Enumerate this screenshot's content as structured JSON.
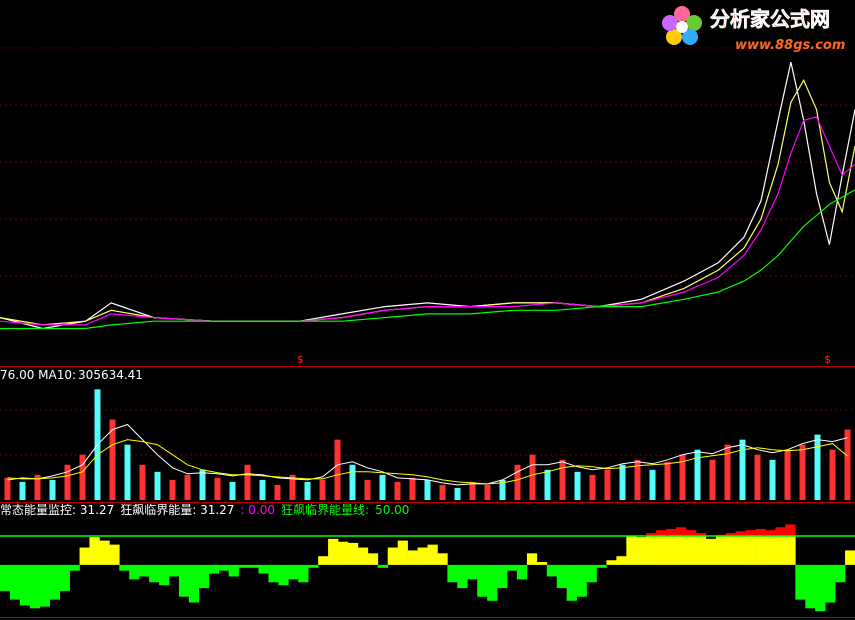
{
  "watermark": {
    "title": "分析家公式网",
    "url": "www.88gs.com"
  },
  "chart_data": [
    {
      "type": "line",
      "x": [
        0,
        5,
        10,
        13,
        18,
        25,
        30,
        35,
        40,
        45,
        50,
        55,
        60,
        65,
        70,
        75,
        80,
        84,
        87,
        89,
        91,
        92.5,
        94,
        95.5,
        97,
        98.5,
        100
      ],
      "xlim": [
        0,
        100
      ],
      "ylim": [
        0,
        100
      ],
      "series": [
        {
          "color": "#ffffff",
          "values": [
            13,
            10,
            12,
            17,
            13,
            12,
            12,
            12,
            14,
            16,
            17,
            16,
            17,
            17,
            16,
            18,
            23,
            28,
            35,
            45,
            67,
            83,
            67,
            47,
            33,
            52,
            70
          ]
        },
        {
          "color": "#ffff66",
          "values": [
            13,
            11,
            12,
            15,
            13,
            12,
            12,
            12,
            13,
            15,
            16,
            16,
            17,
            17,
            16,
            17,
            21,
            26,
            32,
            40,
            55,
            72,
            78,
            70,
            50,
            42,
            60
          ]
        },
        {
          "color": "#ff00ff",
          "values": [
            12,
            11,
            11,
            14,
            13,
            12,
            12,
            12,
            13,
            15,
            16,
            16,
            16,
            17,
            16,
            17,
            20,
            24,
            30,
            37,
            47,
            58,
            67,
            68,
            60,
            52,
            55
          ]
        },
        {
          "color": "#00ff00",
          "values": [
            10,
            10,
            10,
            11,
            12,
            12,
            12,
            12,
            12,
            13,
            14,
            14,
            15,
            15,
            16,
            16,
            18,
            20,
            23,
            26,
            30,
            34,
            38,
            41,
            44,
            46,
            48
          ]
        }
      ],
      "markers": [
        {
          "x": 35.1,
          "label": "$"
        },
        {
          "x": 96.8,
          "label": "$"
        }
      ],
      "marker_color": "#ff2020"
    },
    {
      "type": "bar",
      "header": "76.00 MA10:",
      "ylim": [
        0,
        800000
      ],
      "values": [
        154000,
        126000,
        175000,
        140000,
        245000,
        315000,
        770000,
        560000,
        385000,
        245000,
        196000,
        140000,
        175000,
        210000,
        154000,
        126000,
        245000,
        140000,
        105000,
        175000,
        126000,
        140000,
        420000,
        245000,
        140000,
        175000,
        126000,
        154000,
        140000,
        105000,
        84000,
        126000,
        105000,
        140000,
        245000,
        315000,
        210000,
        280000,
        196000,
        175000,
        210000,
        245000,
        280000,
        210000,
        266000,
        315000,
        350000,
        280000,
        385000,
        420000,
        315000,
        280000,
        350000,
        385000,
        455000,
        350000,
        490000
      ],
      "bar_colors": [
        "#ff3232",
        "#54fcfc",
        "#ff3232",
        "#54fcfc",
        "#ff3232",
        "#ff3232",
        "#54fcfc",
        "#ff3232",
        "#54fcfc",
        "#ff3232",
        "#54fcfc",
        "#ff3232",
        "#ff3232",
        "#54fcfc",
        "#ff3232",
        "#54fcfc",
        "#ff3232",
        "#54fcfc",
        "#ff3232",
        "#ff3232",
        "#54fcfc",
        "#ff3232",
        "#ff3232",
        "#54fcfc",
        "#ff3232",
        "#54fcfc",
        "#ff3232",
        "#ff3232",
        "#54fcfc",
        "#ff3232",
        "#54fcfc",
        "#ff3232",
        "#ff3232",
        "#54fcfc",
        "#ff3232",
        "#ff3232",
        "#54fcfc",
        "#ff3232",
        "#54fcfc",
        "#ff3232",
        "#ff3232",
        "#54fcfc",
        "#ff3232",
        "#54fcfc",
        "#ff3232",
        "#ff3232",
        "#54fcfc",
        "#ff3232",
        "#ff3232",
        "#54fcfc",
        "#ff3232",
        "#54fcfc",
        "#ff3232",
        "#ff3232",
        "#54fcfc",
        "#ff3232",
        "#ff3232"
      ],
      "series": [
        {
          "color": "#ffffff",
          "values": [
            140000,
            154000,
            147000,
            168000,
            196000,
            245000,
            385000,
            490000,
            525000,
            420000,
            315000,
            224000,
            182000,
            189000,
            182000,
            168000,
            182000,
            175000,
            154000,
            147000,
            140000,
            161000,
            245000,
            266000,
            224000,
            196000,
            154000,
            147000,
            140000,
            119000,
            105000,
            112000,
            112000,
            140000,
            196000,
            245000,
            245000,
            266000,
            231000,
            210000,
            224000,
            252000,
            266000,
            252000,
            280000,
            315000,
            336000,
            322000,
            364000,
            385000,
            350000,
            329000,
            350000,
            392000,
            420000,
            406000,
            434000
          ]
        },
        {
          "color": "#ffff00",
          "values": [
            154000,
            147000,
            147000,
            154000,
            168000,
            196000,
            315000,
            385000,
            420000,
            406000,
            385000,
            315000,
            245000,
            210000,
            189000,
            175000,
            175000,
            168000,
            161000,
            154000,
            147000,
            147000,
            175000,
            196000,
            196000,
            189000,
            182000,
            175000,
            161000,
            140000,
            126000,
            119000,
            112000,
            119000,
            140000,
            175000,
            196000,
            224000,
            238000,
            231000,
            217000,
            224000,
            238000,
            245000,
            252000,
            266000,
            294000,
            308000,
            322000,
            350000,
            364000,
            350000,
            343000,
            350000,
            371000,
            392000,
            305634.41
          ]
        }
      ]
    },
    {
      "type": "bar",
      "legend_items": [
        {
          "text": "常态能量监控: 31.27",
          "color": "#ffffff"
        },
        {
          "text": "狂飙临界能量: 31.27",
          "color": "#ffffff"
        },
        {
          "text": ": 0.00",
          "color": "#ff00ff"
        },
        {
          "text": "狂飙临界能量线:",
          "color": "#00ff00"
        }
      ],
      "threshold": {
        "value": 50,
        "label": "50.00"
      },
      "ylim": [
        -90,
        100
      ],
      "colors": {
        "positive": "#ffff00",
        "negative": "#00ff00",
        "above_threshold": "#ff0000",
        "threshold_line": "#00ff00"
      },
      "values": [
        -45,
        -60,
        -70,
        -75,
        -72,
        -60,
        -45,
        -10,
        30,
        48,
        42,
        35,
        -10,
        -25,
        -20,
        -30,
        -35,
        -20,
        -55,
        -65,
        -40,
        -15,
        -10,
        -20,
        -5,
        -5,
        -15,
        -30,
        -35,
        -25,
        -30,
        -5,
        15,
        45,
        40,
        38,
        30,
        20,
        -5,
        30,
        42,
        25,
        30,
        35,
        20,
        -30,
        -40,
        -25,
        -55,
        -62,
        -40,
        -10,
        -25,
        20,
        5,
        -20,
        -40,
        -62,
        -55,
        -30,
        -5,
        8,
        15,
        50,
        48,
        55,
        60,
        62,
        65,
        60,
        55,
        45,
        52,
        55,
        58,
        60,
        62,
        60,
        65,
        70,
        -60,
        -75,
        -80,
        -65,
        -30,
        25
      ]
    }
  ]
}
